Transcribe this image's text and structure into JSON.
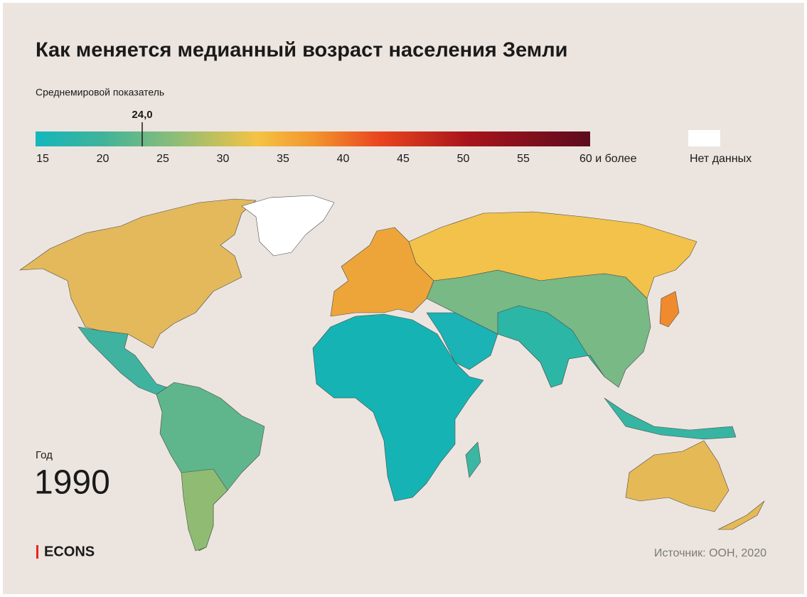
{
  "header": {
    "title": "Как меняется медианный возраст населения Земли"
  },
  "legend": {
    "label": "Среднемировой показатель",
    "marker_label": "24,0",
    "ticks": [
      "15",
      "20",
      "25",
      "30",
      "35",
      "40",
      "45",
      "50",
      "55",
      "60 и более"
    ],
    "no_data": "Нет данных"
  },
  "year": {
    "label": "Год",
    "value": "1990"
  },
  "footer": {
    "brand": "ECONS",
    "source": "Источник: ООН, 2020"
  }
}
